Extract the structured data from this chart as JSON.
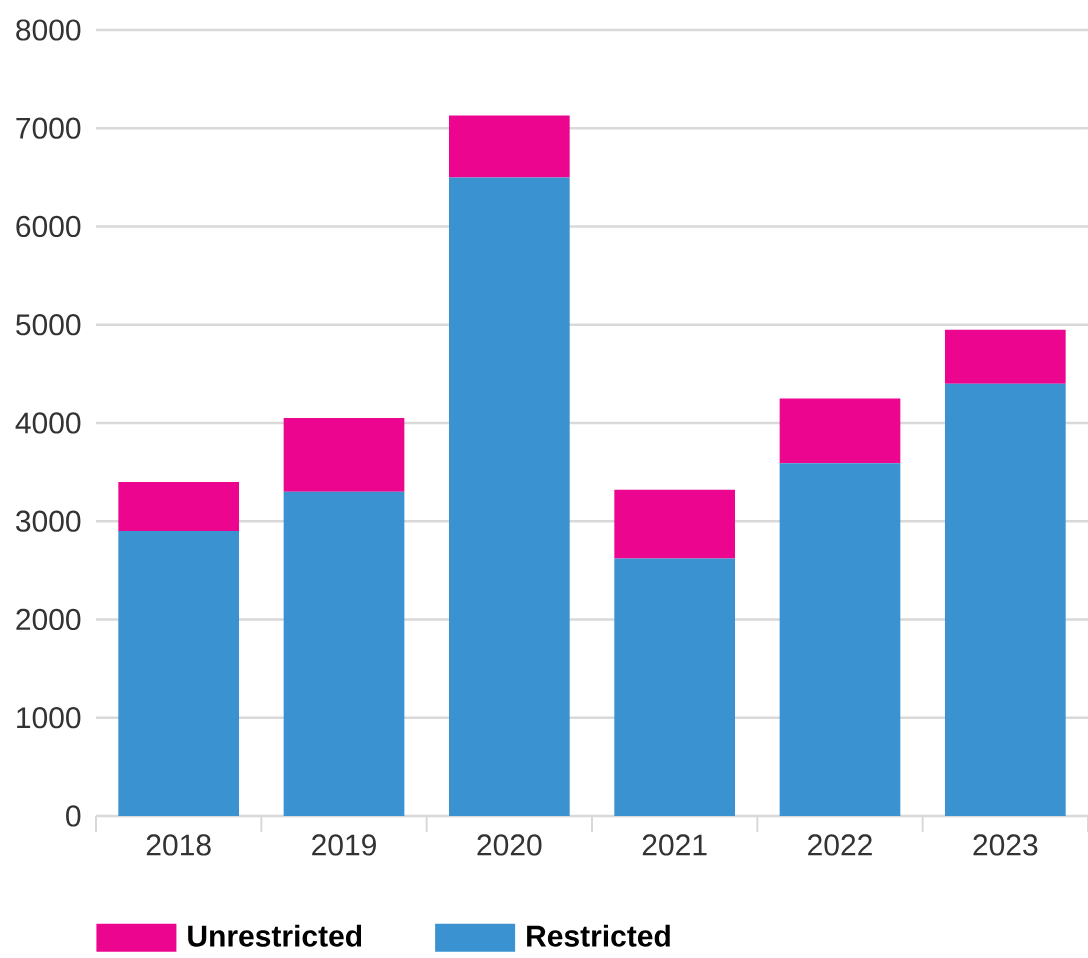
{
  "chart_data": {
    "type": "bar",
    "stacked": true,
    "categories": [
      "2018",
      "2019",
      "2020",
      "2021",
      "2022",
      "2023"
    ],
    "series": [
      {
        "name": "Restricted",
        "color": "#3a93d0",
        "values": [
          2900,
          3300,
          6500,
          2620,
          3590,
          4400
        ]
      },
      {
        "name": "Unrestricted",
        "color": "#ec058e",
        "values": [
          500,
          750,
          630,
          700,
          660,
          550
        ]
      }
    ],
    "ylim": [
      0,
      8000
    ],
    "yticks": [
      0,
      1000,
      2000,
      3000,
      4000,
      5000,
      6000,
      7000,
      8000
    ],
    "grid": "y",
    "legend": "bottom"
  }
}
